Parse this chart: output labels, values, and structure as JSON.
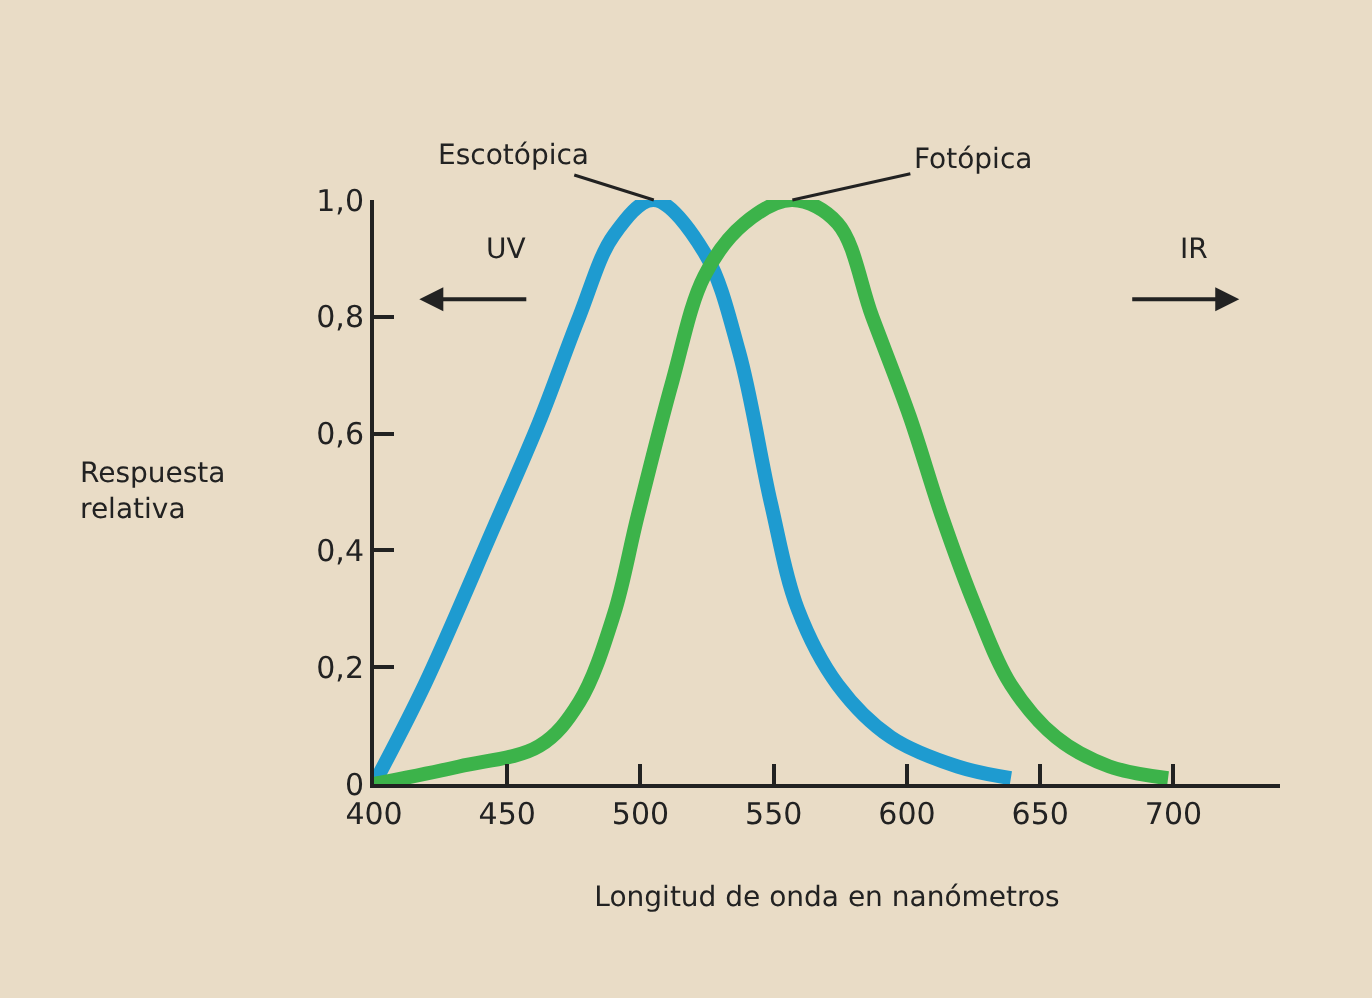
{
  "chart_data": {
    "type": "line",
    "xlabel": "Longitud de onda en nanómetros",
    "ylabel": "Respuesta relativa",
    "xlim": [
      400,
      740
    ],
    "xticks": [
      400,
      450,
      500,
      550,
      600,
      650,
      700
    ],
    "ylim": [
      0,
      1.0
    ],
    "yticks": [
      {
        "value": 0,
        "label": "0"
      },
      {
        "value": 0.2,
        "label": "0,2"
      },
      {
        "value": 0.4,
        "label": "0,4"
      },
      {
        "value": 0.6,
        "label": "0,6"
      },
      {
        "value": 0.8,
        "label": "0,8"
      },
      {
        "value": 1.0,
        "label": "1,0"
      }
    ],
    "line_style": "solid",
    "series": [
      {
        "color": "#1e9bd0",
        "x": [
          400,
          419,
          445,
          462,
          477,
          490,
          505,
          524,
          537,
          549,
          559,
          574,
          594,
          619,
          639
        ],
        "values": [
          0,
          0.17,
          0.44,
          0.62,
          0.8,
          0.94,
          1.0,
          0.91,
          0.74,
          0.48,
          0.3,
          0.17,
          0.08,
          0.03,
          0.01
        ]
      },
      {
        "color": "#3cb34a",
        "x": [
          400,
          432,
          462,
          477,
          490,
          499,
          512,
          524,
          539,
          557,
          574,
          587,
          601,
          613,
          626,
          639,
          656,
          676,
          698
        ],
        "values": [
          0,
          0.03,
          0.065,
          0.14,
          0.29,
          0.46,
          0.69,
          0.87,
          0.96,
          1.0,
          0.96,
          0.8,
          0.63,
          0.46,
          0.3,
          0.17,
          0.08,
          0.03,
          0.01
        ]
      }
    ],
    "annotations": [
      {
        "text": "Escotópica",
        "x": 505,
        "y": 1.0
      },
      {
        "text": "Fotópica",
        "x": 557,
        "y": 1.0
      },
      "UV",
      "IR"
    ]
  }
}
